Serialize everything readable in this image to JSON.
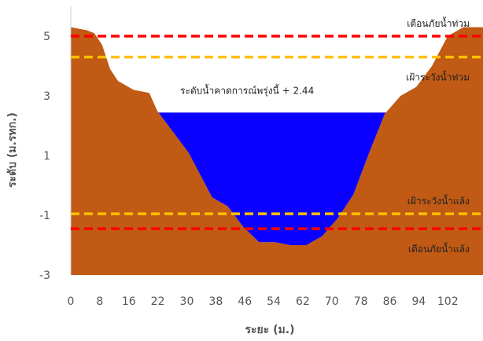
{
  "chart_data": {
    "type": "area",
    "title": "",
    "xlabel": "ระยะ (ม.)",
    "ylabel": "ระดับ (ม.รทก.)",
    "x_tick_labels": [
      "0",
      "8",
      "16",
      "22",
      "30",
      "38",
      "46",
      "54",
      "62",
      "70",
      "78",
      "86",
      "94",
      "102"
    ],
    "y_tick_labels": [
      "5",
      "3",
      "1",
      "-1",
      "-3"
    ],
    "ylim": [
      -3,
      6
    ],
    "xlim": [
      0,
      105
    ],
    "grid": false,
    "ground_profile": {
      "x": [
        0,
        4,
        6,
        8,
        10,
        12,
        16,
        20,
        22,
        26,
        30,
        32,
        36,
        40,
        44,
        48,
        52,
        56,
        60,
        64,
        68,
        72,
        76,
        80,
        84,
        88,
        92,
        96,
        100,
        105
      ],
      "y": [
        5.3,
        5.2,
        5.1,
        4.7,
        3.9,
        3.5,
        3.2,
        3.1,
        2.5,
        1.8,
        1.1,
        0.6,
        -0.4,
        -0.7,
        -1.4,
        -1.9,
        -1.9,
        -2.0,
        -2.0,
        -1.7,
        -1.1,
        -0.3,
        1.1,
        2.4,
        3.0,
        3.3,
        4.0,
        5.0,
        5.3,
        5.3
      ],
      "color": "#c05a14"
    },
    "water": {
      "level": 2.44,
      "label": "ระดับน้ำคาดการณ์พรุ่งนี้ + 2.44",
      "color": "#0a00ff"
    },
    "thresholds": [
      {
        "label": "เตือนภัยน้ำท่วม",
        "value": 5.0,
        "color": "#ff0000"
      },
      {
        "label": "เฝ้าระวังน้ำท่วม",
        "value": 4.3,
        "color": "#ffc000"
      },
      {
        "label": "เฝ้าระวังน้ำแล้ง",
        "value": -0.95,
        "color": "#ffc000"
      },
      {
        "label": "เตือนภัยน้ำแล้ง",
        "value": -1.45,
        "color": "#ff0000"
      }
    ]
  }
}
